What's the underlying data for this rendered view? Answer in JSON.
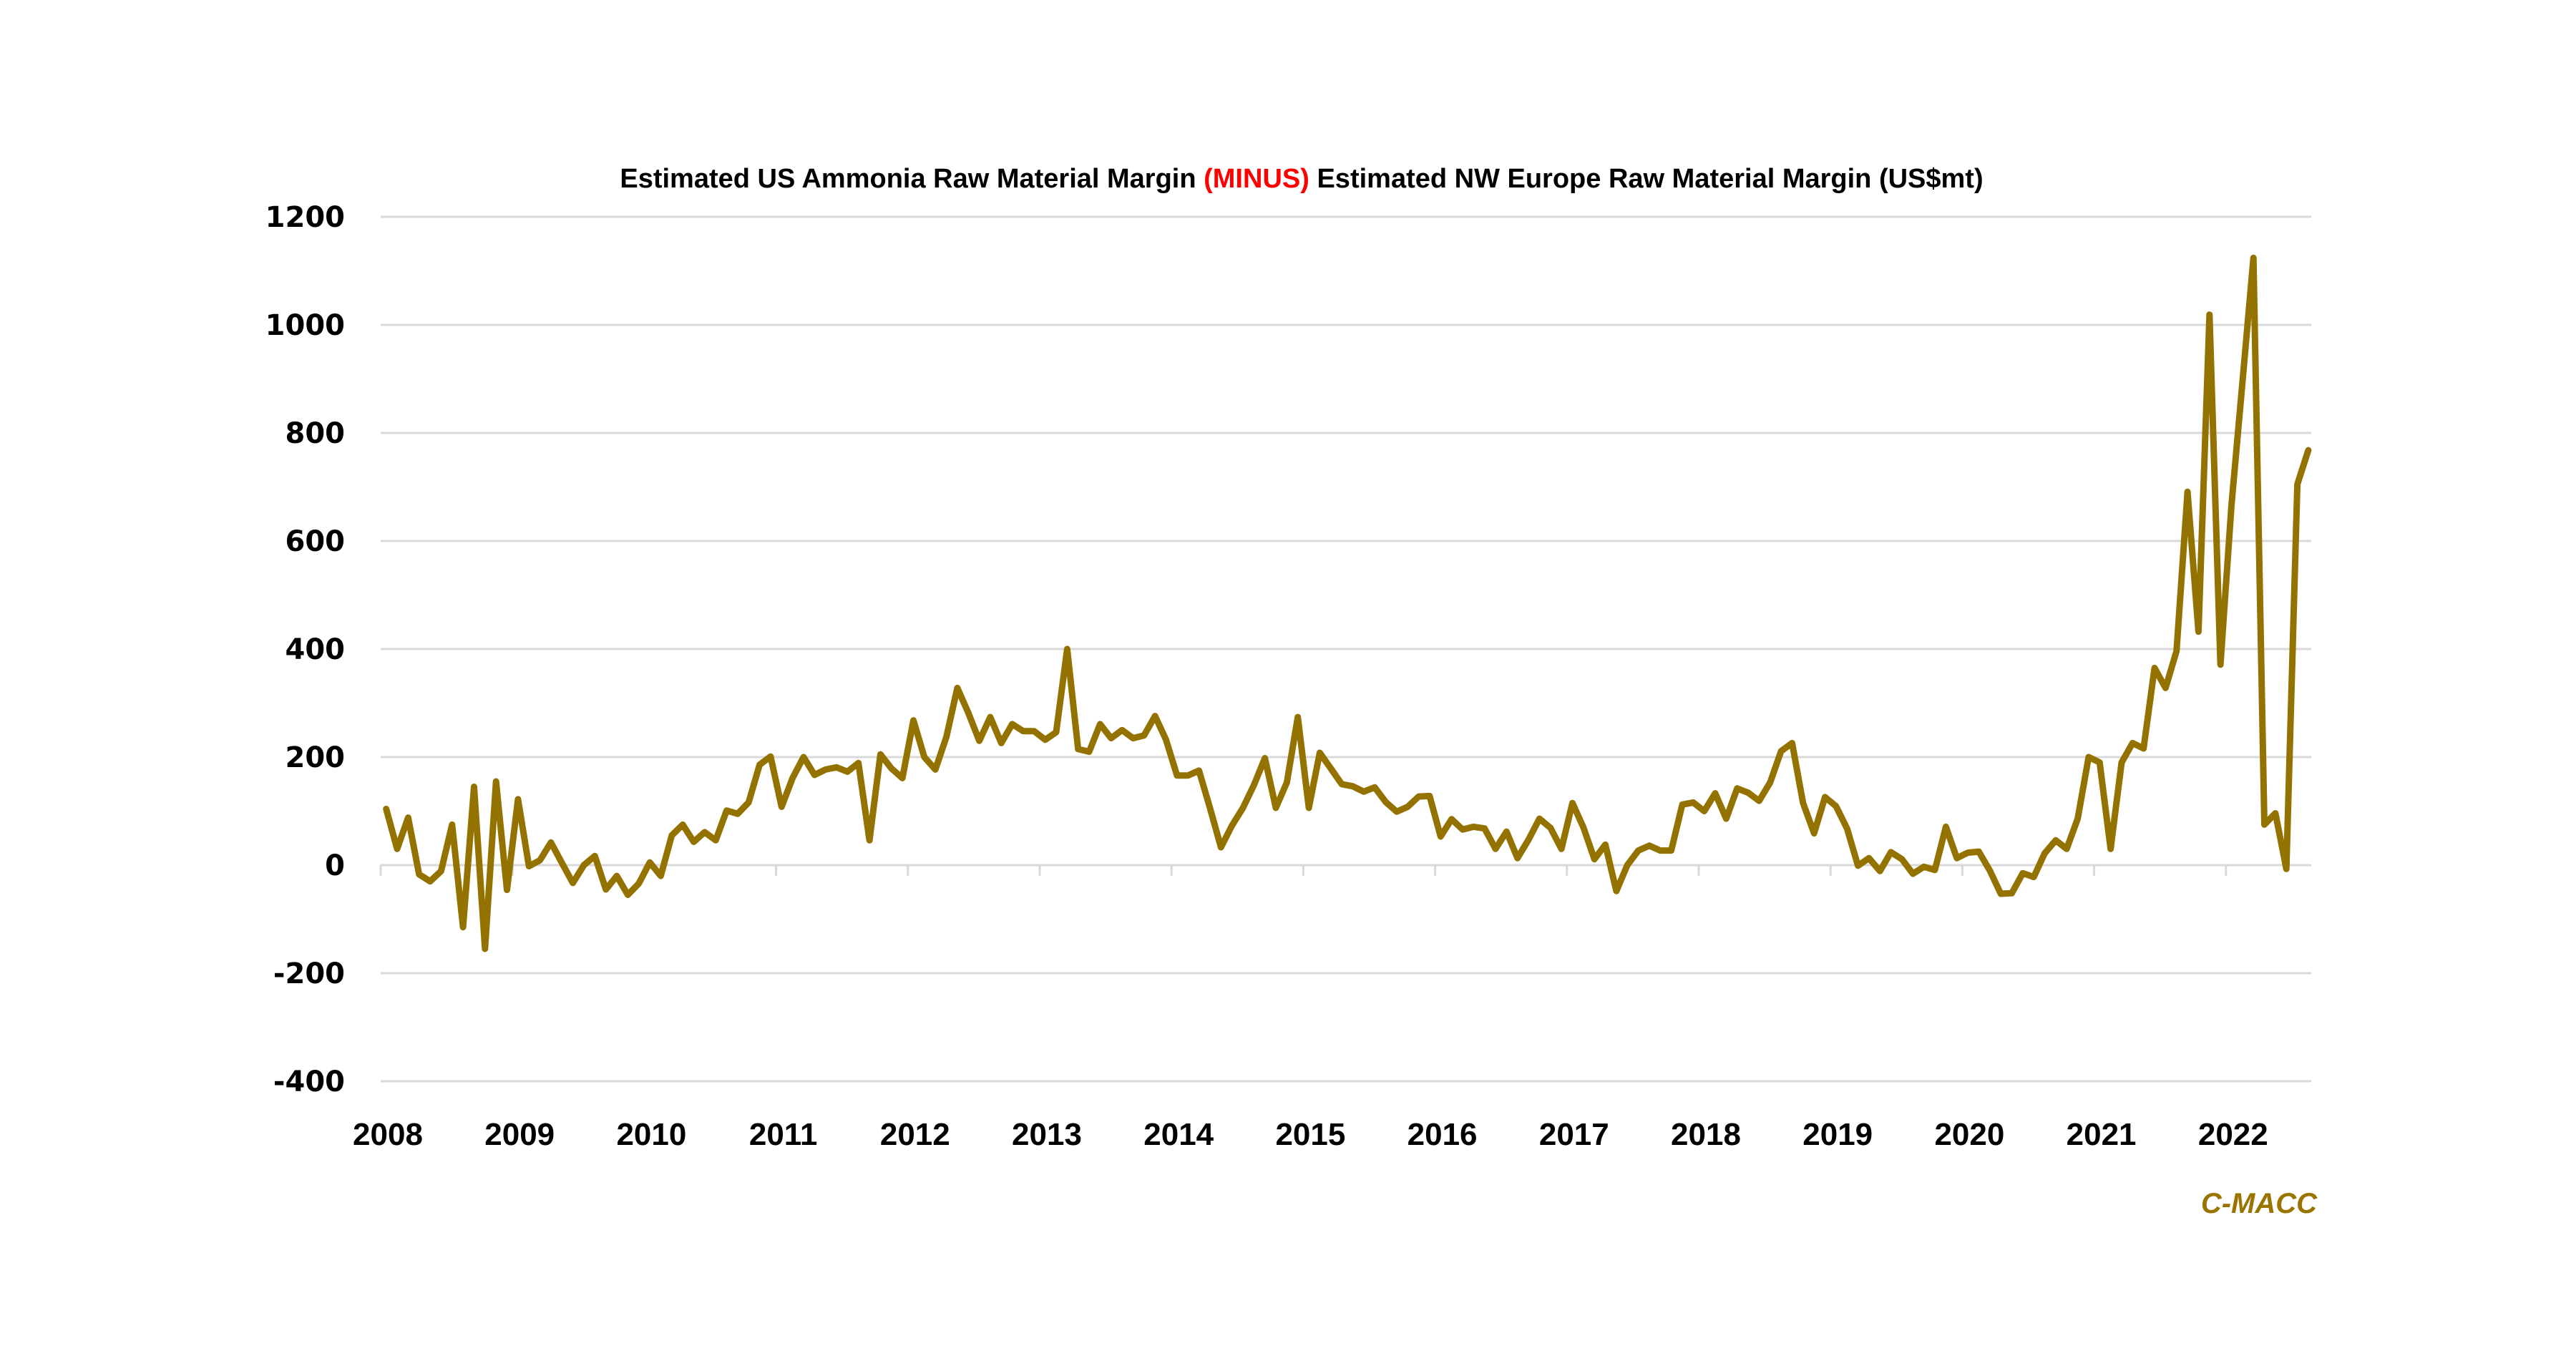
{
  "chart_data": {
    "type": "line",
    "title_parts": [
      {
        "text": "Estimated US Ammonia Raw Material Margin ",
        "highlight": false
      },
      {
        "text": "(MINUS)",
        "highlight": true
      },
      {
        "text": " Estimated NW Europe Raw Material Margin (US$mt)",
        "highlight": false
      }
    ],
    "title": "Estimated US Ammonia Raw Material Margin (MINUS) Estimated NW Europe Raw Material Margin (US$mt)",
    "xlabel": "",
    "ylabel": "",
    "x_start": "2008-01",
    "x_frequency": "monthly",
    "ylim": [
      -400,
      1200
    ],
    "yticks": [
      1200,
      1000,
      800,
      600,
      400,
      200,
      0,
      -200,
      -400
    ],
    "ytick_labels": [
      "1200",
      "1000",
      "800",
      "600",
      "400",
      "200",
      "0",
      "-200",
      "-400"
    ],
    "xticks": [
      "2008",
      "2009",
      "2010",
      "2011",
      "2012",
      "2013",
      "2014",
      "2015",
      "2016",
      "2017",
      "2018",
      "2019",
      "2020",
      "2021",
      "2022"
    ],
    "grid": true,
    "legend": "none",
    "source_label": "C-MACC",
    "colors": {
      "line": "#947200",
      "highlight": "#ff0000",
      "source": "#9a7400",
      "grid": "#d9d9d9"
    },
    "series": [
      {
        "name": "US minus NW Europe raw material margin",
        "values": [
          104,
          30,
          88,
          -17,
          -30,
          -11,
          75,
          -115,
          145,
          -155,
          155,
          -46,
          122,
          -2,
          9,
          42,
          4,
          -33,
          0,
          17,
          -45,
          -20,
          -55,
          -34,
          5,
          -20,
          55,
          75,
          43,
          61,
          46,
          101,
          95,
          116,
          186,
          201,
          108,
          161,
          200,
          167,
          177,
          181,
          173,
          189,
          46,
          205,
          179,
          161,
          268,
          200,
          177,
          237,
          328,
          282,
          230,
          274,
          226,
          261,
          248,
          248,
          232,
          246,
          400,
          215,
          210,
          261,
          235,
          250,
          235,
          240,
          276,
          232,
          166,
          166,
          175,
          106,
          33,
          73,
          106,
          148,
          198,
          106,
          153,
          274,
          106,
          208,
          179,
          150,
          146,
          136,
          144,
          117,
          99,
          108,
          127,
          128,
          53,
          85,
          66,
          71,
          68,
          30,
          62,
          13,
          47,
          86,
          69,
          30,
          115,
          70,
          11,
          38,
          -48,
          0,
          27,
          36,
          27,
          27,
          112,
          116,
          100,
          133,
          86,
          142,
          134,
          119,
          153,
          211,
          226,
          115,
          59,
          126,
          109,
          68,
          -1,
          13,
          -11,
          24,
          11,
          -16,
          -3,
          -9,
          71,
          13,
          23,
          25,
          -10,
          -53,
          -52,
          -15,
          -22,
          22,
          46,
          30,
          86,
          200,
          190,
          30,
          190,
          226,
          216,
          365,
          328,
          396,
          691,
          432,
          1019,
          371,
          666,
          893,
          1124,
          75,
          96,
          -7,
          705,
          768
        ]
      }
    ]
  }
}
